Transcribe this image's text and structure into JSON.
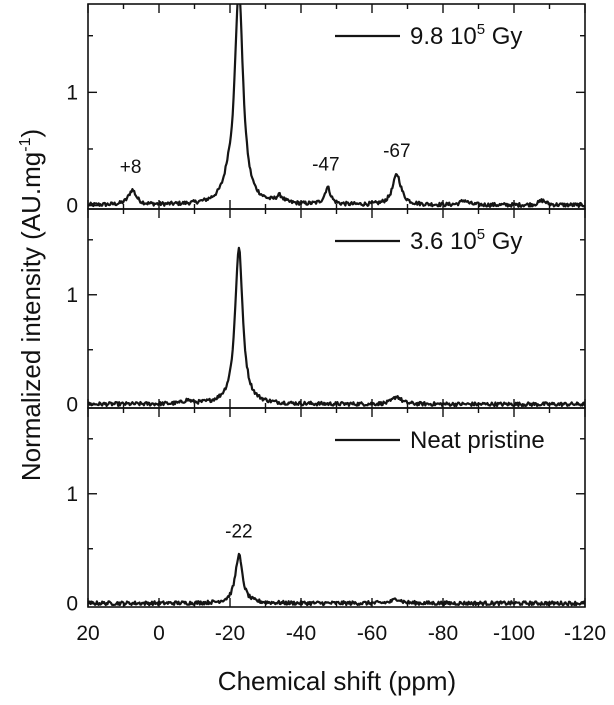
{
  "chart_data": {
    "type": "line",
    "xlabel": "Chemical shift (ppm)",
    "ylabel_main": "Normalized intensity (AU.mg",
    "ylabel_sup": "-1",
    "ylabel_end": ")",
    "xlim": [
      20,
      -120
    ],
    "x_ticks": [
      20,
      0,
      -20,
      -40,
      -60,
      -80,
      -100,
      -120
    ],
    "x_tick_labels": [
      "20",
      "0",
      "-20",
      "-40",
      "-60",
      "-80",
      "-100",
      "-120"
    ],
    "panels": [
      {
        "legend_main": "9.8 10",
        "legend_sup": "5",
        "legend_unit": " Gy",
        "ylim": [
          -0.03,
          1.78
        ],
        "y_ticks": [
          0,
          1
        ],
        "y_tick_labels": [
          "0",
          "1"
        ],
        "peaks": [
          {
            "x": -22.5,
            "y": 1.9,
            "width": 1.4
          },
          {
            "x": 7.5,
            "y": 0.13,
            "width": 1.3
          },
          {
            "x": -47.5,
            "y": 0.15,
            "width": 1.0
          },
          {
            "x": -67,
            "y": 0.27,
            "width": 1.4
          },
          {
            "x": -19.5,
            "y": 0.12,
            "width": 1.5
          },
          {
            "x": -34,
            "y": 0.06,
            "width": 1.2
          },
          {
            "x": -86,
            "y": 0.04,
            "width": 1.2
          },
          {
            "x": -108,
            "y": 0.04,
            "width": 1.2
          }
        ],
        "annotations": [
          {
            "x": 8,
            "text": "+8"
          },
          {
            "x": -47,
            "text": "-47"
          },
          {
            "x": -67,
            "text": "-67"
          }
        ]
      },
      {
        "legend_main": "3.6 10",
        "legend_sup": "5",
        "legend_unit": " Gy",
        "ylim": [
          -0.03,
          1.78
        ],
        "y_ticks": [
          0,
          1
        ],
        "y_tick_labels": [
          "0",
          "1"
        ],
        "peaks": [
          {
            "x": -22.5,
            "y": 1.42,
            "width": 1.3
          },
          {
            "x": -67,
            "y": 0.07,
            "width": 1.4
          },
          {
            "x": -8,
            "y": 0.03,
            "width": 1.2
          }
        ],
        "annotations": []
      },
      {
        "legend_main": "Neat pristine",
        "legend_sup": "",
        "legend_unit": "",
        "ylim": [
          -0.03,
          1.78
        ],
        "y_ticks": [
          0,
          1
        ],
        "y_tick_labels": [
          "0",
          "1"
        ],
        "peaks": [
          {
            "x": -22.5,
            "y": 0.44,
            "width": 1.2
          },
          {
            "x": -67,
            "y": 0.04,
            "width": 1.4
          }
        ],
        "annotations": [
          {
            "x": -22.5,
            "text": "-22"
          }
        ]
      }
    ],
    "grid": false
  }
}
